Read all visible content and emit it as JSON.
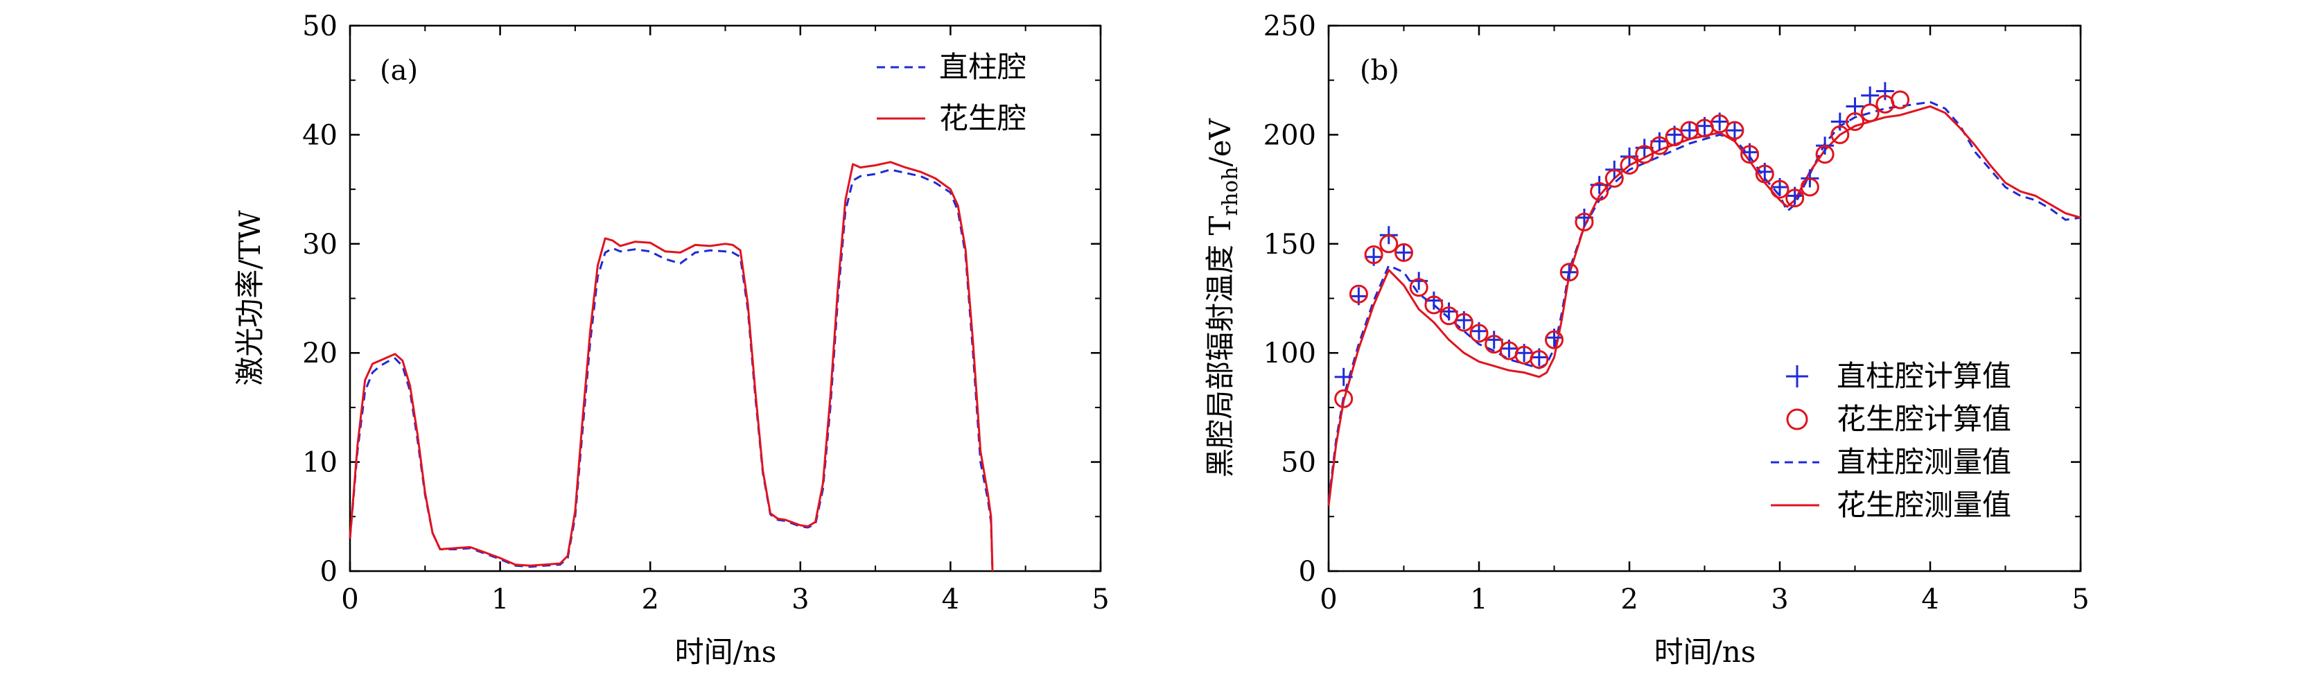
{
  "chart_data": [
    {
      "type": "line",
      "panel_label": "(a)",
      "xlabel": "时间/ns",
      "ylabel": "激光功率/TW",
      "xlim": [
        0,
        5
      ],
      "ylim": [
        0,
        50
      ],
      "xticks": [
        "0",
        "1",
        "2",
        "3",
        "4",
        "5"
      ],
      "yticks": [
        "0",
        "10",
        "20",
        "30",
        "40",
        "50"
      ],
      "legend_position": "top-right",
      "series": [
        {
          "name": "直柱腔",
          "style": "dashed",
          "color": "#1f2bd6",
          "x": [
            0,
            0.05,
            0.1,
            0.15,
            0.2,
            0.25,
            0.3,
            0.35,
            0.4,
            0.45,
            0.5,
            0.55,
            0.6,
            0.7,
            0.8,
            0.9,
            1.0,
            1.1,
            1.2,
            1.3,
            1.4,
            1.45,
            1.5,
            1.55,
            1.6,
            1.65,
            1.7,
            1.75,
            1.8,
            1.9,
            2.0,
            2.1,
            2.2,
            2.3,
            2.4,
            2.5,
            2.55,
            2.6,
            2.65,
            2.7,
            2.75,
            2.8,
            2.85,
            2.9,
            3.0,
            3.05,
            3.1,
            3.15,
            3.2,
            3.25,
            3.3,
            3.35,
            3.4,
            3.5,
            3.6,
            3.7,
            3.8,
            3.9,
            4.0,
            4.05,
            4.1,
            4.15,
            4.2,
            4.25,
            4.27,
            4.28
          ],
          "values": [
            3,
            11,
            16.5,
            18.2,
            18.8,
            19.2,
            19.5,
            18.8,
            16.5,
            12,
            7,
            3.5,
            2,
            2,
            2.1,
            1.6,
            1.1,
            0.5,
            0.4,
            0.5,
            0.6,
            1.2,
            5,
            13,
            21,
            27,
            29.2,
            29.6,
            29.3,
            29.5,
            29.3,
            28.6,
            28.2,
            29.2,
            29.4,
            29.3,
            29.2,
            28.8,
            24,
            16,
            9,
            5.2,
            4.7,
            4.6,
            4.1,
            4.0,
            4.3,
            7.5,
            15,
            25,
            33,
            35.8,
            36.2,
            36.4,
            36.8,
            36.5,
            36.2,
            35.6,
            34.7,
            33,
            29,
            20,
            10,
            6.5,
            4.5,
            0
          ]
        },
        {
          "name": "花生腔",
          "style": "solid",
          "color": "#e0141e",
          "x": [
            0,
            0.05,
            0.1,
            0.15,
            0.2,
            0.25,
            0.3,
            0.35,
            0.4,
            0.45,
            0.5,
            0.55,
            0.6,
            0.7,
            0.8,
            0.9,
            1.0,
            1.1,
            1.2,
            1.3,
            1.4,
            1.45,
            1.5,
            1.55,
            1.6,
            1.65,
            1.7,
            1.75,
            1.8,
            1.9,
            2.0,
            2.1,
            2.2,
            2.3,
            2.4,
            2.5,
            2.55,
            2.6,
            2.65,
            2.7,
            2.75,
            2.8,
            2.85,
            2.9,
            3.0,
            3.05,
            3.1,
            3.15,
            3.2,
            3.25,
            3.3,
            3.35,
            3.4,
            3.5,
            3.6,
            3.7,
            3.8,
            3.9,
            4.0,
            4.05,
            4.1,
            4.15,
            4.2,
            4.25,
            4.27,
            4.28
          ],
          "values": [
            3,
            11.5,
            17.5,
            19.0,
            19.3,
            19.6,
            19.9,
            19.3,
            17,
            12.5,
            7.2,
            3.5,
            2,
            2.1,
            2.2,
            1.7,
            1.2,
            0.6,
            0.5,
            0.6,
            0.7,
            1.4,
            5.5,
            14,
            22,
            28,
            30.5,
            30.3,
            29.8,
            30.2,
            30.1,
            29.3,
            29.2,
            29.9,
            29.8,
            30.0,
            29.9,
            29.4,
            24.5,
            16.5,
            9.2,
            5.3,
            4.8,
            4.7,
            4.2,
            4.1,
            4.5,
            8,
            16,
            26,
            34,
            37.3,
            37.0,
            37.2,
            37.5,
            37.0,
            36.6,
            36.0,
            35.0,
            33.5,
            29.5,
            21,
            11,
            7,
            5,
            0
          ]
        }
      ]
    },
    {
      "type": "line+scatter",
      "panel_label": "(b)",
      "xlabel": "时间/ns",
      "ylabel": "黑腔局部辐射温度 T",
      "ylabel_sub": "rhoh",
      "ylabel_unit": "/eV",
      "xlim": [
        0,
        5
      ],
      "ylim": [
        0,
        250
      ],
      "xticks": [
        "0",
        "1",
        "2",
        "3",
        "4",
        "5"
      ],
      "yticks": [
        "0",
        "50",
        "100",
        "150",
        "200",
        "250"
      ],
      "legend_position": "bottom-right",
      "series": [
        {
          "name": "直柱腔计算值",
          "style": "plus",
          "color": "#1f2bd6",
          "x": [
            0.1,
            0.2,
            0.3,
            0.4,
            0.5,
            0.6,
            0.7,
            0.8,
            0.9,
            1.0,
            1.1,
            1.2,
            1.3,
            1.4,
            1.5,
            1.6,
            1.7,
            1.8,
            1.9,
            2.0,
            2.1,
            2.2,
            2.3,
            2.4,
            2.5,
            2.6,
            2.7,
            2.8,
            2.9,
            3.0,
            3.1,
            3.2,
            3.3,
            3.4,
            3.5,
            3.6,
            3.7
          ],
          "values": [
            89,
            126,
            144,
            154,
            146,
            133,
            124,
            119,
            115,
            110,
            106,
            102,
            100,
            98,
            107,
            137,
            162,
            177,
            184,
            190,
            194,
            197,
            200,
            202,
            204,
            206,
            202,
            192,
            183,
            176,
            172,
            180,
            195,
            206,
            213,
            218,
            220
          ]
        },
        {
          "name": "花生腔计算值",
          "style": "circle",
          "color": "#e0141e",
          "x": [
            0.1,
            0.2,
            0.3,
            0.4,
            0.5,
            0.6,
            0.7,
            0.8,
            0.9,
            1.0,
            1.1,
            1.2,
            1.3,
            1.4,
            1.5,
            1.6,
            1.7,
            1.8,
            1.9,
            2.0,
            2.1,
            2.2,
            2.3,
            2.4,
            2.5,
            2.6,
            2.7,
            2.8,
            2.9,
            3.0,
            3.1,
            3.2,
            3.3,
            3.4,
            3.5,
            3.6,
            3.7,
            3.8
          ],
          "values": [
            79,
            127,
            145,
            150,
            146,
            130,
            122,
            117,
            114,
            109,
            104,
            101,
            99,
            97,
            106,
            137,
            160,
            174,
            180,
            186,
            191,
            195,
            199,
            202,
            203,
            205,
            202,
            191,
            182,
            175,
            171,
            176,
            191,
            200,
            206,
            210,
            214,
            216
          ]
        },
        {
          "name": "直柱腔测量值",
          "style": "dashed",
          "color": "#1f2bd6",
          "x": [
            0,
            0.05,
            0.1,
            0.2,
            0.3,
            0.4,
            0.5,
            0.6,
            0.7,
            0.8,
            0.9,
            1.0,
            1.1,
            1.2,
            1.3,
            1.4,
            1.45,
            1.5,
            1.55,
            1.6,
            1.7,
            1.8,
            1.9,
            2.0,
            2.2,
            2.4,
            2.6,
            2.7,
            2.8,
            2.9,
            3.0,
            3.05,
            3.1,
            3.2,
            3.3,
            3.4,
            3.5,
            3.6,
            3.7,
            3.8,
            3.9,
            4.0,
            4.1,
            4.2,
            4.3,
            4.4,
            4.5,
            4.6,
            4.7,
            4.8,
            4.9,
            5.0
          ],
          "values": [
            32,
            60,
            80,
            104,
            124,
            140,
            137,
            127,
            122,
            116,
            110,
            104,
            101,
            97,
            95,
            93,
            95,
            102,
            118,
            138,
            158,
            170,
            178,
            184,
            190,
            196,
            200,
            198,
            190,
            180,
            172,
            165,
            168,
            182,
            196,
            204,
            208,
            210,
            212,
            213,
            214,
            215,
            212,
            204,
            192,
            184,
            176,
            172,
            170,
            166,
            161,
            162
          ]
        },
        {
          "name": "花生腔测量值",
          "style": "solid",
          "color": "#e0141e",
          "x": [
            0,
            0.05,
            0.1,
            0.2,
            0.3,
            0.4,
            0.5,
            0.6,
            0.7,
            0.8,
            0.9,
            1.0,
            1.1,
            1.2,
            1.3,
            1.4,
            1.45,
            1.5,
            1.55,
            1.6,
            1.7,
            1.8,
            1.9,
            2.0,
            2.2,
            2.4,
            2.6,
            2.7,
            2.8,
            2.9,
            3.0,
            3.05,
            3.1,
            3.2,
            3.3,
            3.4,
            3.5,
            3.6,
            3.7,
            3.8,
            3.9,
            4.0,
            4.1,
            4.2,
            4.3,
            4.4,
            4.5,
            4.6,
            4.7,
            4.8,
            4.9,
            5.0
          ],
          "values": [
            30,
            58,
            78,
            102,
            122,
            138,
            131,
            120,
            114,
            106,
            100,
            96,
            94,
            92,
            91,
            89,
            91,
            98,
            115,
            136,
            158,
            172,
            180,
            186,
            193,
            198,
            201,
            197,
            188,
            178,
            170,
            167,
            170,
            183,
            193,
            200,
            204,
            206,
            208,
            209,
            211,
            213,
            210,
            203,
            195,
            186,
            178,
            174,
            172,
            168,
            164,
            162
          ]
        }
      ]
    }
  ]
}
